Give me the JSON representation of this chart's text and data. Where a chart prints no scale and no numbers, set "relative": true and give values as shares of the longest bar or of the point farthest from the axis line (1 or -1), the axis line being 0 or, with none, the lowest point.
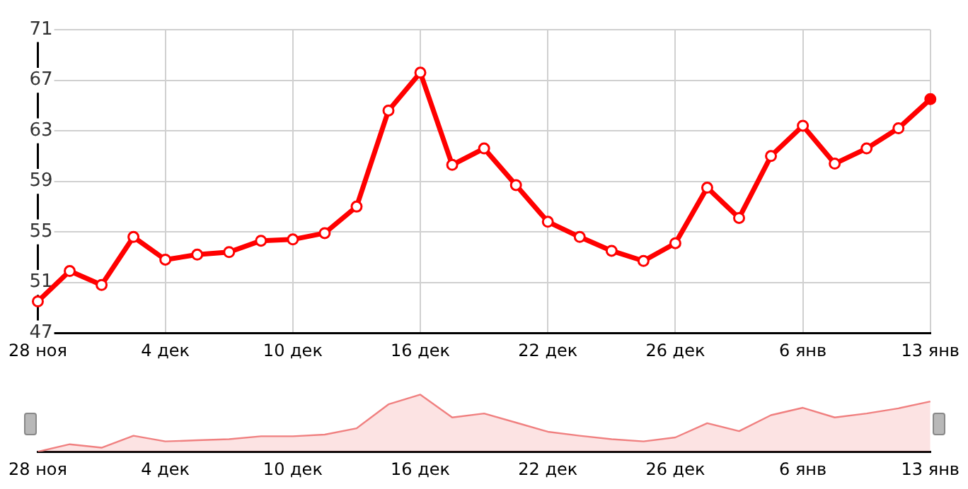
{
  "chart_data": [
    {
      "type": "line",
      "categories": [
        "28 ноя",
        null,
        null,
        null,
        "4 дек",
        null,
        null,
        null,
        "10 дек",
        null,
        null,
        null,
        "16 дек",
        null,
        null,
        null,
        "22 дек",
        null,
        null,
        null,
        "26 дек",
        null,
        null,
        null,
        "6 янв",
        null,
        null,
        null,
        "13 янв"
      ],
      "series": [
        {
          "color": "#ff0000",
          "values": [
            49.5,
            51.9,
            50.8,
            54.6,
            52.8,
            53.2,
            53.4,
            54.3,
            54.4,
            54.9,
            57.0,
            64.6,
            67.6,
            60.3,
            61.6,
            58.7,
            55.8,
            54.6,
            53.5,
            52.7,
            54.1,
            58.5,
            56.1,
            61.0,
            63.4,
            60.4,
            61.6,
            63.2,
            65.5
          ]
        }
      ],
      "ylim": [
        47,
        71
      ],
      "yticks": [
        47,
        51,
        55,
        59,
        63,
        67,
        71
      ],
      "grid": true,
      "legend": false,
      "marker": "circle",
      "line_style": "solid"
    },
    {
      "type": "area",
      "relative": true,
      "categories": [
        "28 ноя",
        null,
        null,
        null,
        "4 дек",
        null,
        null,
        null,
        "10 дек",
        null,
        null,
        null,
        "16 дек",
        null,
        null,
        null,
        "22 дек",
        null,
        null,
        null,
        "26 дек",
        null,
        null,
        null,
        "6 янв",
        null,
        null,
        null,
        "13 янв"
      ],
      "series": [
        {
          "color": "#f08080",
          "values": [
            0,
            0.13,
            0.07,
            0.28,
            0.18,
            0.2,
            0.22,
            0.27,
            0.27,
            0.3,
            0.41,
            0.83,
            1,
            0.6,
            0.67,
            0.51,
            0.35,
            0.28,
            0.22,
            0.18,
            0.25,
            0.5,
            0.36,
            0.64,
            0.77,
            0.6,
            0.67,
            0.76,
            0.88
          ]
        }
      ],
      "grid": false,
      "legend": false,
      "marker": "none"
    }
  ]
}
